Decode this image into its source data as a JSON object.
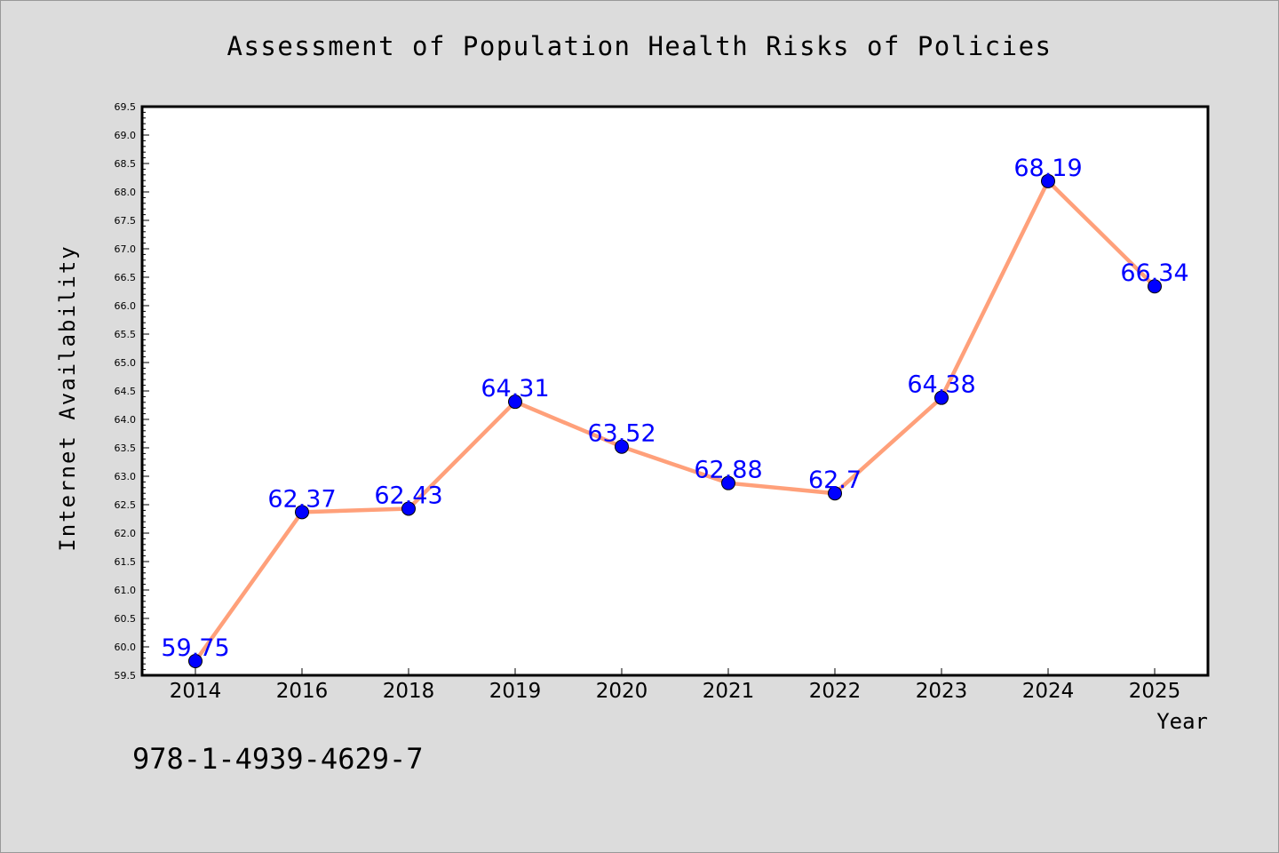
{
  "chart_data": {
    "type": "line",
    "title": "Assessment of Population Health Risks of Policies",
    "xlabel": "Year",
    "ylabel": "Internet Availability",
    "categories": [
      "2014",
      "2016",
      "2018",
      "2019",
      "2020",
      "2021",
      "2022",
      "2023",
      "2024",
      "2025"
    ],
    "values": [
      59.75,
      62.37,
      62.43,
      64.31,
      63.52,
      62.88,
      62.7,
      64.38,
      68.19,
      66.34
    ],
    "data_labels": [
      "59.75",
      "62.37",
      "62.43",
      "64.31",
      "63.52",
      "62.88",
      "62.7",
      "64.38",
      "68.19",
      "66.34"
    ],
    "ylim": [
      59.5,
      69.5
    ],
    "ytick_labels": [
      "59.5",
      "60.0",
      "60.5",
      "61.0",
      "61.5",
      "62.0",
      "62.5",
      "63.0",
      "63.5",
      "64.0",
      "64.5",
      "65.0",
      "65.5",
      "66.0",
      "66.5",
      "67.0",
      "67.5",
      "68.0",
      "68.5",
      "69.0",
      "69.5"
    ],
    "grid": false,
    "legend": "none",
    "line_color": "#ffa07a",
    "marker_color": "#0000ff",
    "label_color": "#0000ff"
  },
  "annotation": {
    "text": "978-1-4939-4629-7"
  }
}
